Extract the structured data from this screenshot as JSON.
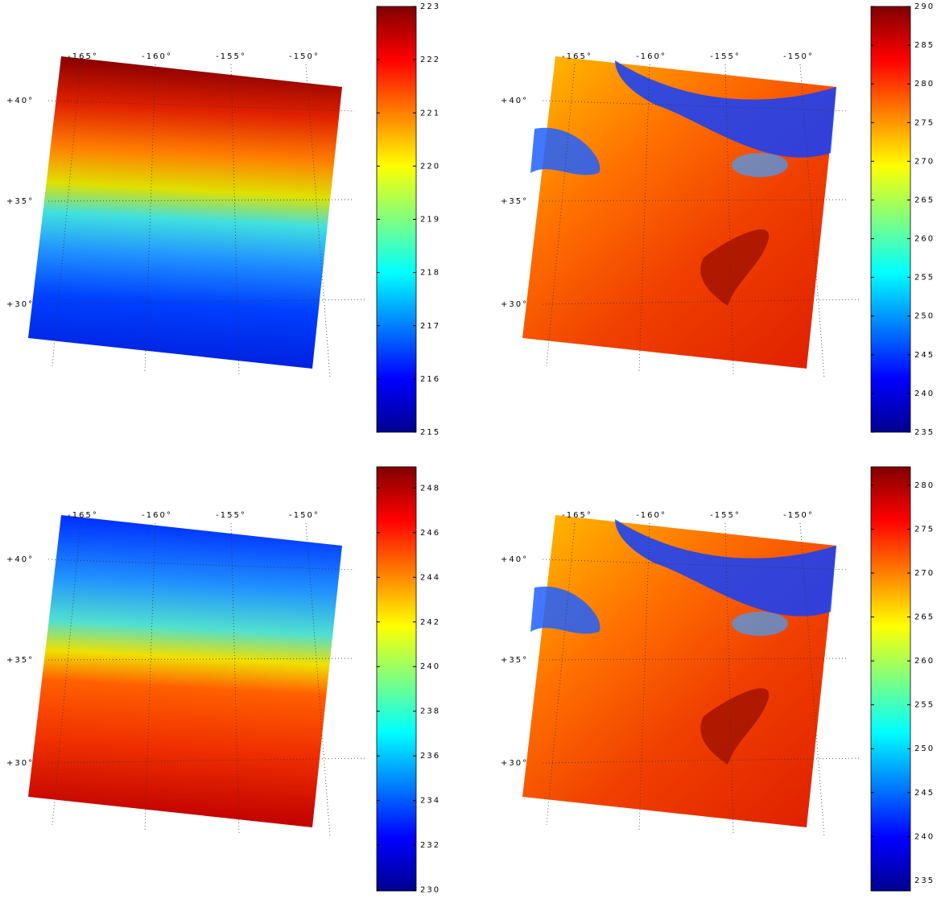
{
  "panels": [
    {
      "lon_labels": [
        "-165°",
        "-160°",
        "-155°",
        "-150°"
      ],
      "lat_labels": [
        "+40°",
        "+35°",
        "+30°"
      ],
      "colorbar": {
        "lim": [
          215,
          223
        ],
        "ticks": [
          215,
          216,
          217,
          218,
          219,
          220,
          221,
          222,
          223
        ]
      }
    },
    {
      "lon_labels": [
        "-165°",
        "-160°",
        "-155°",
        "-150°"
      ],
      "lat_labels": [
        "+40°",
        "+35°",
        "+30°"
      ],
      "colorbar": {
        "lim": [
          235,
          290
        ],
        "ticks": [
          235,
          240,
          245,
          250,
          255,
          260,
          265,
          270,
          275,
          280,
          285,
          290
        ]
      }
    },
    {
      "lon_labels": [
        "-165°",
        "-160°",
        "-155°",
        "-150°"
      ],
      "lat_labels": [
        "+40°",
        "+35°",
        "+30°"
      ],
      "colorbar": {
        "lim": [
          229.95,
          248.95
        ],
        "ticks": [
          230,
          232,
          234,
          236,
          238,
          240,
          242,
          244,
          246,
          248
        ]
      }
    },
    {
      "lon_labels": [
        "-165°",
        "-160°",
        "-155°",
        "-150°"
      ],
      "lat_labels": [
        "+40°",
        "+35°",
        "+30°"
      ],
      "colorbar": {
        "lim": [
          233.8,
          282.1
        ],
        "ticks": [
          235,
          240,
          245,
          250,
          255,
          260,
          265,
          270,
          275,
          280
        ]
      }
    }
  ]
}
